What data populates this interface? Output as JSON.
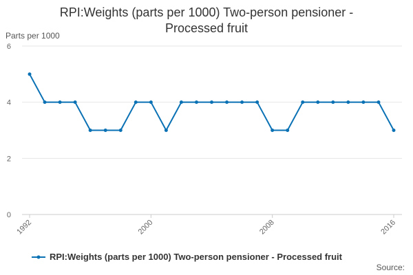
{
  "chart_data": {
    "type": "line",
    "title_lines": [
      "RPI:Weights (parts per 1000) Two-person pensioner -",
      "Processed fruit"
    ],
    "ylabel": "Parts per 1000",
    "xlabel": "",
    "ylim": [
      0,
      6
    ],
    "yticks": [
      0,
      2,
      4,
      6
    ],
    "xlim": [
      1992,
      2016
    ],
    "xticks": [
      1992,
      2000,
      2008,
      2016
    ],
    "grid": true,
    "legend_position": "bottom",
    "series": [
      {
        "name": "RPI:Weights (parts per 1000) Two-person pensioner - Processed fruit",
        "color": "#0a71b4",
        "x": [
          1992,
          1993,
          1994,
          1995,
          1996,
          1997,
          1998,
          1999,
          2000,
          2001,
          2002,
          2003,
          2004,
          2005,
          2006,
          2007,
          2008,
          2009,
          2010,
          2011,
          2012,
          2013,
          2014,
          2015,
          2016
        ],
        "values": [
          5,
          4,
          4,
          4,
          3,
          3,
          3,
          4,
          4,
          3,
          4,
          4,
          4,
          4,
          4,
          4,
          3,
          3,
          4,
          4,
          4,
          4,
          4,
          4,
          3
        ]
      }
    ]
  },
  "source_label": "Source:"
}
